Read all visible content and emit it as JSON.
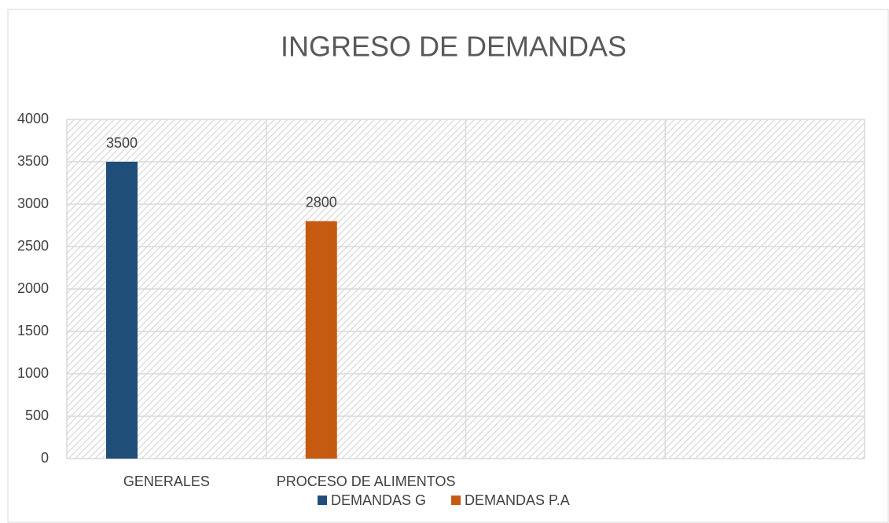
{
  "chart_data": {
    "type": "bar",
    "title": "INGRESO DE DEMANDAS",
    "categories": [
      "GENERALES",
      "PROCESO DE ALIMENTOS",
      null,
      null
    ],
    "series": [
      {
        "name": "DEMANDAS G",
        "color": "#1f4e79",
        "values": [
          3500,
          null,
          null,
          null
        ]
      },
      {
        "name": "DEMANDAS P.A",
        "color": "#c55a11",
        "values": [
          null,
          2800,
          null,
          null
        ]
      }
    ],
    "ylim": [
      0,
      4000
    ],
    "yticks": [
      0,
      500,
      1000,
      1500,
      2000,
      2500,
      3000,
      3500,
      4000
    ],
    "grid": true,
    "data_labels": true,
    "legend": "bottom"
  }
}
